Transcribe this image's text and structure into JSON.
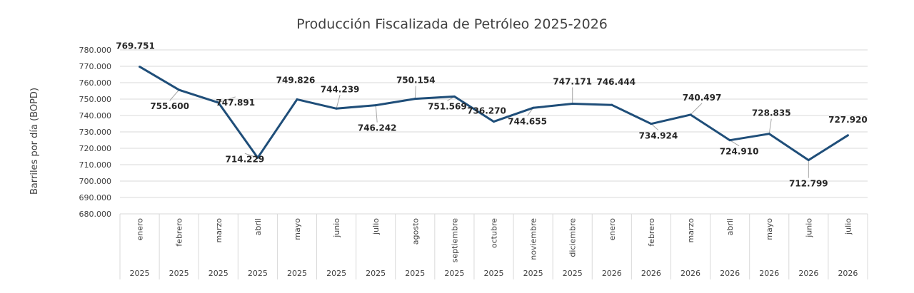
{
  "chart_data": {
    "type": "line",
    "title": "Producción Fiscalizada de Petróleo 2025-2026",
    "ylabel": "Barriles por día (BOPD)",
    "xlabel": "",
    "ylim": [
      680000,
      780000
    ],
    "y_ticks": [
      "680.000",
      "690.000",
      "700.000",
      "710.000",
      "720.000",
      "730.000",
      "740.000",
      "750.000",
      "760.000",
      "770.000",
      "780.000"
    ],
    "grid": true,
    "legend": "none",
    "line_color": "#1f4e79",
    "categories": [
      {
        "month": "enero",
        "year": "2025"
      },
      {
        "month": "febrero",
        "year": "2025"
      },
      {
        "month": "marzo",
        "year": "2025"
      },
      {
        "month": "abril",
        "year": "2025"
      },
      {
        "month": "mayo",
        "year": "2025"
      },
      {
        "month": "junio",
        "year": "2025"
      },
      {
        "month": "julio",
        "year": "2025"
      },
      {
        "month": "agosto",
        "year": "2025"
      },
      {
        "month": "septiembre",
        "year": "2025"
      },
      {
        "month": "octubre",
        "year": "2025"
      },
      {
        "month": "noviembre",
        "year": "2025"
      },
      {
        "month": "diciembre",
        "year": "2025"
      },
      {
        "month": "enero",
        "year": "2026"
      },
      {
        "month": "febrero",
        "year": "2026"
      },
      {
        "month": "marzo",
        "year": "2026"
      },
      {
        "month": "abril",
        "year": "2026"
      },
      {
        "month": "mayo",
        "year": "2026"
      },
      {
        "month": "junio",
        "year": "2026"
      },
      {
        "month": "julio",
        "year": "2026"
      }
    ],
    "values": [
      769751,
      755600,
      747891,
      714229,
      749826,
      744239,
      746242,
      750154,
      751569,
      736270,
      744655,
      747171,
      746444,
      734924,
      740497,
      724910,
      728835,
      712799,
      727920
    ],
    "data_labels": [
      "769.751",
      "755.600",
      "747.891",
      "714.229",
      "749.826",
      "744.239",
      "746.242",
      "750.154",
      "751.569",
      "736.270",
      "744.655",
      "747.171",
      "746.444",
      "734.924",
      "740.497",
      "724.910",
      "728.835",
      "712.799",
      "727.920"
    ]
  }
}
